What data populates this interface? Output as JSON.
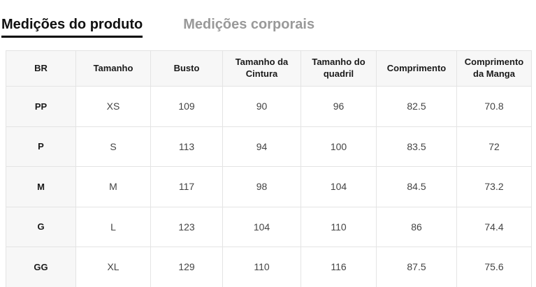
{
  "tabs": {
    "product": {
      "label": "Medições do produto",
      "active": true
    },
    "body": {
      "label": "Medições corporais",
      "active": false
    }
  },
  "table": {
    "columns": [
      "BR",
      "Tamanho",
      "Busto",
      "Tamanho da Cintura",
      "Tamanho do quadril",
      "Comprimento",
      "Comprimento da Manga"
    ],
    "rows": [
      [
        "PP",
        "XS",
        "109",
        "90",
        "96",
        "82.5",
        "70.8"
      ],
      [
        "P",
        "S",
        "113",
        "94",
        "100",
        "83.5",
        "72"
      ],
      [
        "M",
        "M",
        "117",
        "98",
        "104",
        "84.5",
        "73.2"
      ],
      [
        "G",
        "L",
        "123",
        "104",
        "110",
        "86",
        "74.4"
      ],
      [
        "GG",
        "XL",
        "129",
        "110",
        "116",
        "87.5",
        "75.6"
      ]
    ]
  },
  "colors": {
    "active_tab_text": "#111111",
    "active_tab_underline": "#000000",
    "inactive_tab_text": "#999999",
    "header_bg": "#f7f7f7",
    "border": "#e4e4e4",
    "cell_text": "#444444",
    "header_text": "#1a1a1a"
  }
}
